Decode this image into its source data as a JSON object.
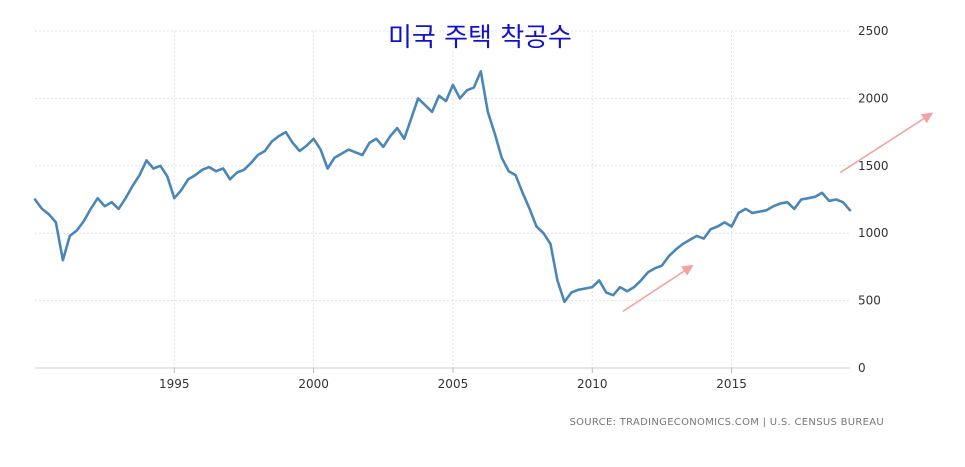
{
  "chart_data": {
    "type": "line",
    "title": "미국 주택 착공수",
    "source": "SOURCE: TRADINGECONOMICS.COM  |  U.S. CENSUS BUREAU",
    "xlabel": "",
    "ylabel": "",
    "xlim": [
      1990.0,
      2019.25
    ],
    "ylim": [
      0,
      2500
    ],
    "x_ticks": [
      1995,
      2000,
      2005,
      2010,
      2015
    ],
    "x_tick_labels": [
      "1995",
      "2000",
      "2005",
      "2010",
      "2015"
    ],
    "y_ticks": [
      0,
      500,
      1000,
      1500,
      2000,
      2500
    ],
    "y_tick_labels": [
      "0",
      "500",
      "1000",
      "1500",
      "2000",
      "2500"
    ],
    "y_axis_position": "right",
    "grid": true,
    "colors": {
      "line": "#4a86b8",
      "arrow": "#f4a3a3",
      "title": "#1212c8",
      "grid": "#e3e3e3",
      "text": "#333333",
      "source": "#777777"
    },
    "series": [
      {
        "x": [
          1990.0,
          1990.25,
          1990.5,
          1990.75,
          1991.0,
          1991.25,
          1991.5,
          1991.75,
          1992.0,
          1992.25,
          1992.5,
          1992.75,
          1993.0,
          1993.25,
          1993.5,
          1993.75,
          1994.0,
          1994.25,
          1994.5,
          1994.75,
          1995.0,
          1995.25,
          1995.5,
          1995.75,
          1996.0,
          1996.25,
          1996.5,
          1996.75,
          1997.0,
          1997.25,
          1997.5,
          1997.75,
          1998.0,
          1998.25,
          1998.5,
          1998.75,
          1999.0,
          1999.25,
          1999.5,
          1999.75,
          2000.0,
          2000.25,
          2000.5,
          2000.75,
          2001.0,
          2001.25,
          2001.5,
          2001.75,
          2002.0,
          2002.25,
          2002.5,
          2002.75,
          2003.0,
          2003.25,
          2003.5,
          2003.75,
          2004.0,
          2004.25,
          2004.5,
          2004.75,
          2005.0,
          2005.25,
          2005.5,
          2005.75,
          2006.0,
          2006.25,
          2006.5,
          2006.75,
          2007.0,
          2007.25,
          2007.5,
          2007.75,
          2008.0,
          2008.25,
          2008.5,
          2008.75,
          2009.0,
          2009.25,
          2009.5,
          2009.75,
          2010.0,
          2010.25,
          2010.5,
          2010.75,
          2011.0,
          2011.25,
          2011.5,
          2011.75,
          2012.0,
          2012.25,
          2012.5,
          2012.75,
          2013.0,
          2013.25,
          2013.5,
          2013.75,
          2014.0,
          2014.25,
          2014.5,
          2014.75,
          2015.0,
          2015.25,
          2015.5,
          2015.75,
          2016.0,
          2016.25,
          2016.5,
          2016.75,
          2017.0,
          2017.25,
          2017.5,
          2017.75,
          2018.0,
          2018.25,
          2018.5,
          2018.75,
          2019.0,
          2019.25
        ],
        "values": [
          1250,
          1180,
          1140,
          1080,
          800,
          980,
          1020,
          1090,
          1180,
          1260,
          1200,
          1230,
          1180,
          1260,
          1350,
          1430,
          1540,
          1480,
          1500,
          1420,
          1260,
          1320,
          1400,
          1430,
          1470,
          1490,
          1460,
          1480,
          1400,
          1450,
          1470,
          1520,
          1580,
          1610,
          1680,
          1720,
          1750,
          1670,
          1610,
          1650,
          1700,
          1620,
          1480,
          1560,
          1590,
          1620,
          1600,
          1580,
          1670,
          1700,
          1640,
          1720,
          1780,
          1700,
          1850,
          2000,
          1950,
          1900,
          2020,
          1980,
          2100,
          2000,
          2060,
          2080,
          2200,
          1900,
          1740,
          1560,
          1460,
          1430,
          1300,
          1180,
          1050,
          1000,
          920,
          650,
          490,
          560,
          580,
          590,
          600,
          650,
          560,
          540,
          600,
          570,
          600,
          650,
          710,
          740,
          760,
          830,
          880,
          920,
          950,
          980,
          960,
          1030,
          1050,
          1080,
          1050,
          1150,
          1180,
          1150,
          1160,
          1170,
          1200,
          1220,
          1230,
          1180,
          1250,
          1260,
          1270,
          1300,
          1240,
          1250,
          1230,
          1170
        ]
      }
    ],
    "arrows": [
      {
        "from": [
          2011.1,
          420
        ],
        "to": [
          2013.6,
          760
        ]
      },
      {
        "from": [
          2018.9,
          1450
        ],
        "to": [
          2022.2,
          1890
        ]
      }
    ]
  }
}
